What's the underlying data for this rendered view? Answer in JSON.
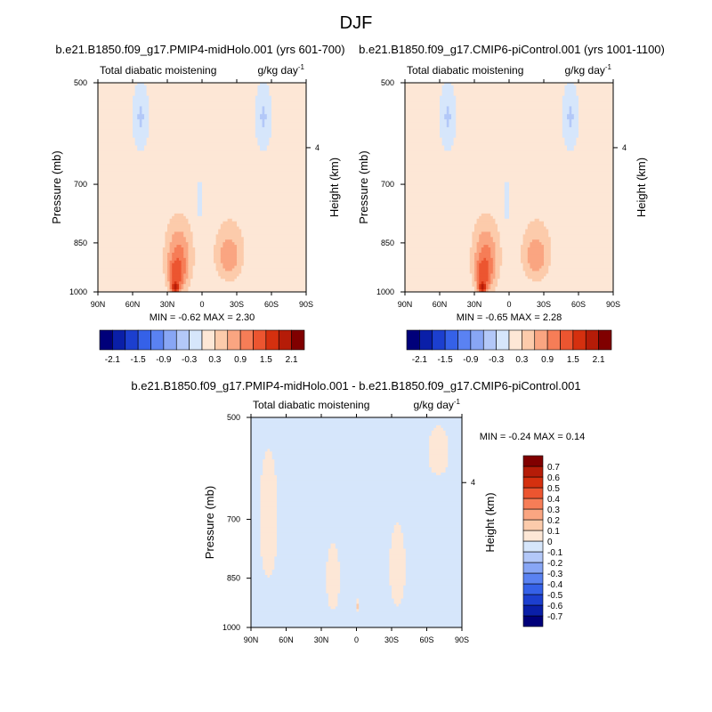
{
  "figure_title": "DJF",
  "unit_label": "g/kg day",
  "unit_exponent": "-1",
  "chart_data": [
    {
      "type": "heatmap",
      "id": "top-left",
      "title": "b.e21.B1850.f09_g17.PMIP4-midHolo.001 (yrs 601-700)",
      "subtitle": "Total diabatic moistening",
      "xlabel": "",
      "ylabel": "Pressure (mb)",
      "ylabel_right": "Height (km)",
      "x_ticks": [
        "90N",
        "60N",
        "30N",
        "0",
        "30S",
        "60S",
        "90S"
      ],
      "x_tick_lats": [
        90,
        60,
        30,
        0,
        -30,
        -60,
        -90
      ],
      "y_ticks": [
        500,
        700,
        850,
        1000
      ],
      "y_right_ticks": [
        "4"
      ],
      "y_right_tick_pressure": 620,
      "xlim": [
        90,
        -90
      ],
      "ylim": [
        1000,
        500
      ],
      "stats_text": "MIN =  -0.62  MAX =   2.30",
      "min": -0.62,
      "max": 2.3,
      "colorbar": {
        "orientation": "horizontal",
        "levels": [
          -2.1,
          -1.8,
          -1.5,
          -1.2,
          -0.9,
          -0.6,
          -0.3,
          0,
          0.3,
          0.6,
          0.9,
          1.2,
          1.5,
          1.8,
          2.1
        ],
        "tick_labels": [
          "-2.1",
          "-1.5",
          "-0.9",
          "-0.3",
          "0.3",
          "0.9",
          "1.5",
          "2.1"
        ],
        "colors": [
          "#00007a",
          "#0a1fa8",
          "#1c3fcf",
          "#3561e8",
          "#5a82f2",
          "#88a6f5",
          "#b3c8f8",
          "#d6e6fb",
          "#fde7d6",
          "#fccbab",
          "#faa581",
          "#f67d57",
          "#ec5530",
          "#d5300f",
          "#b51c08",
          "#800000"
        ]
      },
      "fields": [
        {
          "kind": "background",
          "value": 0.1
        },
        {
          "kind": "blob",
          "value": -0.35,
          "lat": 53,
          "p": 560,
          "dlat": 9,
          "dp": 80
        },
        {
          "kind": "blob",
          "value": -0.35,
          "lat": -53,
          "p": 560,
          "dlat": 9,
          "dp": 80
        },
        {
          "kind": "blob",
          "value": 0.6,
          "lat": 20,
          "p": 880,
          "dlat": 18,
          "dp": 160
        },
        {
          "kind": "blob",
          "value": 1.0,
          "lat": 20,
          "p": 900,
          "dlat": 12,
          "dp": 110
        },
        {
          "kind": "blob",
          "value": 1.5,
          "lat": 22,
          "p": 940,
          "dlat": 9,
          "dp": 70
        },
        {
          "kind": "blob",
          "value": 2.1,
          "lat": 23,
          "p": 985,
          "dlat": 5,
          "dp": 25
        },
        {
          "kind": "blob",
          "value": 0.3,
          "lat": -25,
          "p": 860,
          "dlat": 22,
          "dp": 160
        },
        {
          "kind": "blob",
          "value": 0.6,
          "lat": -23,
          "p": 880,
          "dlat": 16,
          "dp": 110
        },
        {
          "kind": "blob",
          "value": 0.9,
          "lat": -23,
          "p": 890,
          "dlat": 10,
          "dp": 60
        },
        {
          "kind": "blob",
          "value": 0.3,
          "lat": -70,
          "p": 950,
          "dlat": 12,
          "dp": 50
        },
        {
          "kind": "blob",
          "value": 0.3,
          "lat": 68,
          "p": 960,
          "dlat": 10,
          "dp": 40
        },
        {
          "kind": "blob",
          "value": -0.3,
          "lat": 2,
          "p": 740,
          "dlat": 3,
          "dp": 60
        }
      ]
    },
    {
      "type": "heatmap",
      "id": "top-right",
      "title": "b.e21.B1850.f09_g17.CMIP6-piControl.001 (yrs 1001-1100)",
      "subtitle": "Total diabatic moistening",
      "xlabel": "",
      "ylabel": "Pressure (mb)",
      "ylabel_right": "Height (km)",
      "x_ticks": [
        "90N",
        "60N",
        "30N",
        "0",
        "30S",
        "60S",
        "90S"
      ],
      "x_tick_lats": [
        90,
        60,
        30,
        0,
        -30,
        -60,
        -90
      ],
      "y_ticks": [
        500,
        700,
        850,
        1000
      ],
      "y_right_ticks": [
        "4"
      ],
      "y_right_tick_pressure": 620,
      "xlim": [
        90,
        -90
      ],
      "ylim": [
        1000,
        500
      ],
      "stats_text": "MIN =  -0.65  MAX =   2.28",
      "min": -0.65,
      "max": 2.28,
      "colorbar": {
        "orientation": "horizontal",
        "levels": [
          -2.1,
          -1.8,
          -1.5,
          -1.2,
          -0.9,
          -0.6,
          -0.3,
          0,
          0.3,
          0.6,
          0.9,
          1.2,
          1.5,
          1.8,
          2.1
        ],
        "tick_labels": [
          "-2.1",
          "-1.5",
          "-0.9",
          "-0.3",
          "0.3",
          "0.9",
          "1.5",
          "2.1"
        ],
        "colors": [
          "#00007a",
          "#0a1fa8",
          "#1c3fcf",
          "#3561e8",
          "#5a82f2",
          "#88a6f5",
          "#b3c8f8",
          "#d6e6fb",
          "#fde7d6",
          "#fccbab",
          "#faa581",
          "#f67d57",
          "#ec5530",
          "#d5300f",
          "#b51c08",
          "#800000"
        ]
      },
      "fields": [
        {
          "kind": "background",
          "value": 0.1
        },
        {
          "kind": "blob",
          "value": -0.35,
          "lat": 53,
          "p": 560,
          "dlat": 9,
          "dp": 80
        },
        {
          "kind": "blob",
          "value": -0.35,
          "lat": -53,
          "p": 560,
          "dlat": 9,
          "dp": 80
        },
        {
          "kind": "blob",
          "value": 0.6,
          "lat": 20,
          "p": 880,
          "dlat": 18,
          "dp": 160
        },
        {
          "kind": "blob",
          "value": 1.0,
          "lat": 20,
          "p": 900,
          "dlat": 12,
          "dp": 110
        },
        {
          "kind": "blob",
          "value": 1.5,
          "lat": 22,
          "p": 940,
          "dlat": 9,
          "dp": 70
        },
        {
          "kind": "blob",
          "value": 2.1,
          "lat": 23,
          "p": 985,
          "dlat": 5,
          "dp": 25
        },
        {
          "kind": "blob",
          "value": 0.3,
          "lat": -25,
          "p": 860,
          "dlat": 22,
          "dp": 160
        },
        {
          "kind": "blob",
          "value": 0.6,
          "lat": -23,
          "p": 880,
          "dlat": 16,
          "dp": 110
        },
        {
          "kind": "blob",
          "value": 0.9,
          "lat": -23,
          "p": 890,
          "dlat": 10,
          "dp": 60
        },
        {
          "kind": "blob",
          "value": 0.3,
          "lat": -70,
          "p": 950,
          "dlat": 12,
          "dp": 50
        },
        {
          "kind": "blob",
          "value": 0.3,
          "lat": 68,
          "p": 960,
          "dlat": 10,
          "dp": 40
        },
        {
          "kind": "blob",
          "value": -0.35,
          "lat": 2,
          "p": 740,
          "dlat": 3,
          "dp": 60
        }
      ]
    },
    {
      "type": "heatmap",
      "id": "bottom",
      "title": "b.e21.B1850.f09_g17.PMIP4-midHolo.001 - b.e21.B1850.f09_g17.CMIP6-piControl.001",
      "subtitle": "Total diabatic moistening",
      "xlabel": "",
      "ylabel": "Pressure (mb)",
      "ylabel_right": "Height (km)",
      "x_ticks": [
        "90N",
        "60N",
        "30N",
        "0",
        "30S",
        "60S",
        "90S"
      ],
      "x_tick_lats": [
        90,
        60,
        30,
        0,
        -30,
        -60,
        -90
      ],
      "y_ticks": [
        500,
        700,
        850,
        1000
      ],
      "y_right_ticks": [
        "4"
      ],
      "y_right_tick_pressure": 620,
      "xlim": [
        90,
        -90
      ],
      "ylim": [
        1000,
        500
      ],
      "stats_text": "MIN = -0.24  MAX =   0.14",
      "min": -0.24,
      "max": 0.14,
      "colorbar": {
        "orientation": "vertical",
        "levels": [
          -0.7,
          -0.6,
          -0.5,
          -0.4,
          -0.3,
          -0.2,
          -0.1,
          0,
          0.1,
          0.2,
          0.3,
          0.4,
          0.5,
          0.6,
          0.7
        ],
        "tick_labels": [
          "-0.7",
          "-0.6",
          "-0.5",
          "-0.4",
          "-0.3",
          "-0.2",
          "-0.1",
          "0",
          "0.1",
          "0.2",
          "0.3",
          "0.4",
          "0.5",
          "0.6",
          "0.7"
        ],
        "colors": [
          "#00007a",
          "#0a1fa8",
          "#1c3fcf",
          "#3561e8",
          "#5a82f2",
          "#88a6f5",
          "#b3c8f8",
          "#d6e6fb",
          "#fde7d6",
          "#fccbab",
          "#faa581",
          "#f67d57",
          "#ec5530",
          "#d5300f",
          "#b51c08",
          "#800000"
        ]
      },
      "fields": [
        {
          "kind": "background",
          "value": -0.05
        },
        {
          "kind": "blob",
          "value": 0.05,
          "lat": 75,
          "p": 700,
          "dlat": 14,
          "dp": 260
        },
        {
          "kind": "blob",
          "value": 0.05,
          "lat": -70,
          "p": 560,
          "dlat": 16,
          "dp": 80
        },
        {
          "kind": "blob",
          "value": 0.05,
          "lat": 20,
          "p": 850,
          "dlat": 10,
          "dp": 170
        },
        {
          "kind": "blob",
          "value": 0.05,
          "lat": -35,
          "p": 820,
          "dlat": 12,
          "dp": 200
        },
        {
          "kind": "blob",
          "value": -0.15,
          "lat": 8,
          "p": 860,
          "dlat": 1.5,
          "dp": 25
        },
        {
          "kind": "blob",
          "value": 0.12,
          "lat": -1,
          "p": 930,
          "dlat": 1.5,
          "dp": 30
        }
      ]
    }
  ]
}
